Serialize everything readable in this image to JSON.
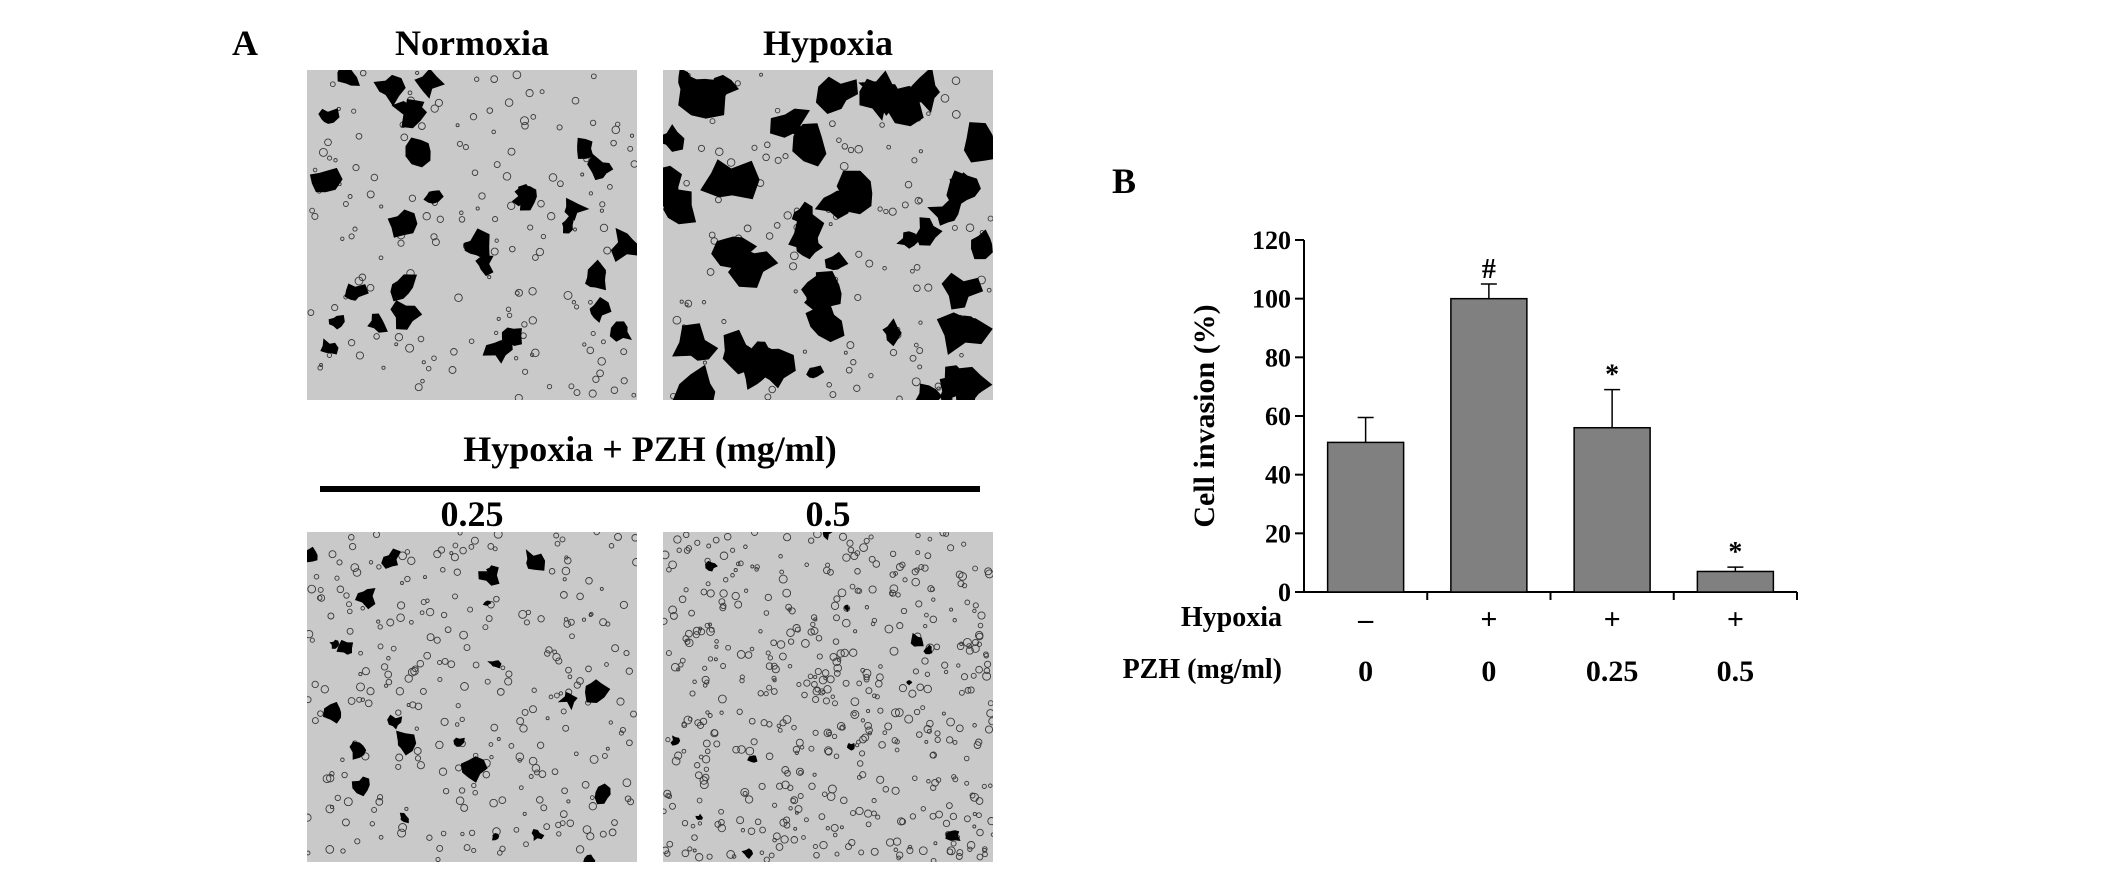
{
  "panels": {
    "a_label": "A",
    "b_label": "B"
  },
  "micrographs": {
    "top_left_title": "Normoxia",
    "top_right_title": "Hypoxia",
    "group_title": "Hypoxia + PZH (mg/ml)",
    "bottom_left_title": "0.25",
    "bottom_right_title": "0.5",
    "background_color": "#c9c9c9",
    "cell_color": "#000000"
  },
  "chart_data": {
    "type": "bar",
    "ylabel": "Cell invasion (%)",
    "ylim": [
      0,
      120
    ],
    "yticks": [
      0,
      20,
      40,
      60,
      80,
      100,
      120
    ],
    "categories": [
      "Normoxia",
      "Hypoxia",
      "Hypoxia + PZH 0.25",
      "Hypoxia + PZH 0.5"
    ],
    "values": [
      51,
      100,
      56,
      7
    ],
    "errors": [
      8.5,
      5,
      13,
      1.5
    ],
    "annotations": [
      "",
      "#",
      "*",
      "*"
    ],
    "bar_color": "#808080",
    "conditions": [
      {
        "label": "Hypoxia",
        "values": [
          "–",
          "+",
          "+",
          "+"
        ]
      },
      {
        "label": "PZH (mg/ml)",
        "values": [
          "0",
          "0",
          "0.25",
          "0.5"
        ]
      }
    ]
  }
}
